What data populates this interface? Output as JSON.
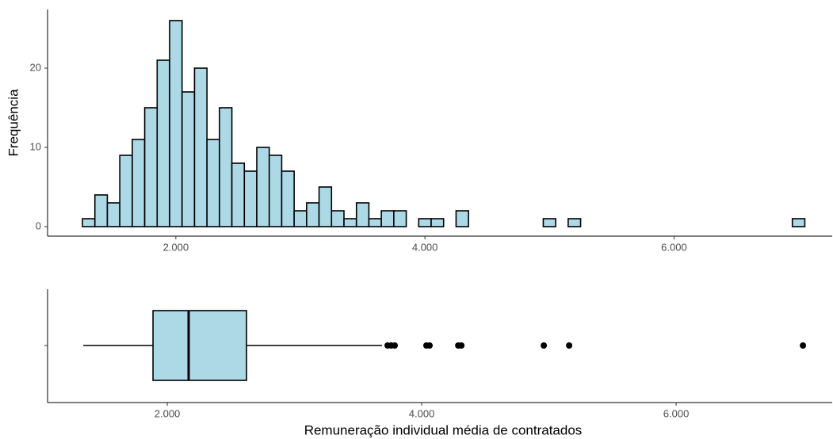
{
  "chart_data": [
    {
      "type": "histogram",
      "y_label": "Frequência",
      "color": "#add8e6",
      "edgecolor": "#000000",
      "bins": [
        1250,
        1350,
        1450,
        1550,
        1650,
        1750,
        1850,
        1950,
        2050,
        2150,
        2250,
        2350,
        2450,
        2550,
        2650,
        2750,
        2850,
        2950,
        3050,
        3150,
        3250,
        3350,
        3450,
        3550,
        3650,
        3750,
        3850,
        3950,
        4050,
        4150,
        4250,
        4350,
        4450,
        4550,
        4650,
        4750,
        4850,
        4950,
        5050,
        5150,
        5250,
        5350,
        5450,
        5550,
        5650,
        5750,
        5850,
        5950,
        6050,
        6150,
        6250,
        6350,
        6450,
        6550,
        6650,
        6750,
        6850,
        6950,
        7050
      ],
      "counts": [
        1,
        4,
        3,
        9,
        11,
        15,
        21,
        26,
        17,
        20,
        11,
        15,
        8,
        7,
        10,
        9,
        7,
        2,
        3,
        5,
        2,
        1,
        3,
        1,
        2,
        2,
        0,
        1,
        1,
        0,
        2,
        0,
        0,
        0,
        0,
        0,
        0,
        1,
        0,
        1,
        0,
        0,
        0,
        0,
        0,
        0,
        0,
        0,
        0,
        0,
        0,
        0,
        0,
        0,
        0,
        0,
        0,
        1
      ],
      "xlim": [
        970,
        7270
      ],
      "ylim": [
        -1.2,
        27.4
      ],
      "xticks": [
        {
          "value": 2000,
          "label": "2.000"
        },
        {
          "value": 4000,
          "label": "4.000"
        },
        {
          "value": 6000,
          "label": "6.000"
        }
      ],
      "yticks": [
        0,
        10,
        20
      ]
    },
    {
      "type": "box",
      "x_label": "Remuneração individual média de contratados",
      "color": "#add8e6",
      "min": 1340,
      "q1": 1888,
      "median": 2168,
      "q3": 2623,
      "max": 3688,
      "outliers": [
        3732,
        3760,
        3788,
        4037,
        4062,
        4287,
        4312,
        4960,
        5159,
        6997
      ],
      "xlim": [
        1059,
        7227
      ],
      "xticks": [
        {
          "value": 2000,
          "label": "2.000"
        },
        {
          "value": 4000,
          "label": "4.000"
        },
        {
          "value": 6000,
          "label": "6.000"
        }
      ]
    }
  ]
}
